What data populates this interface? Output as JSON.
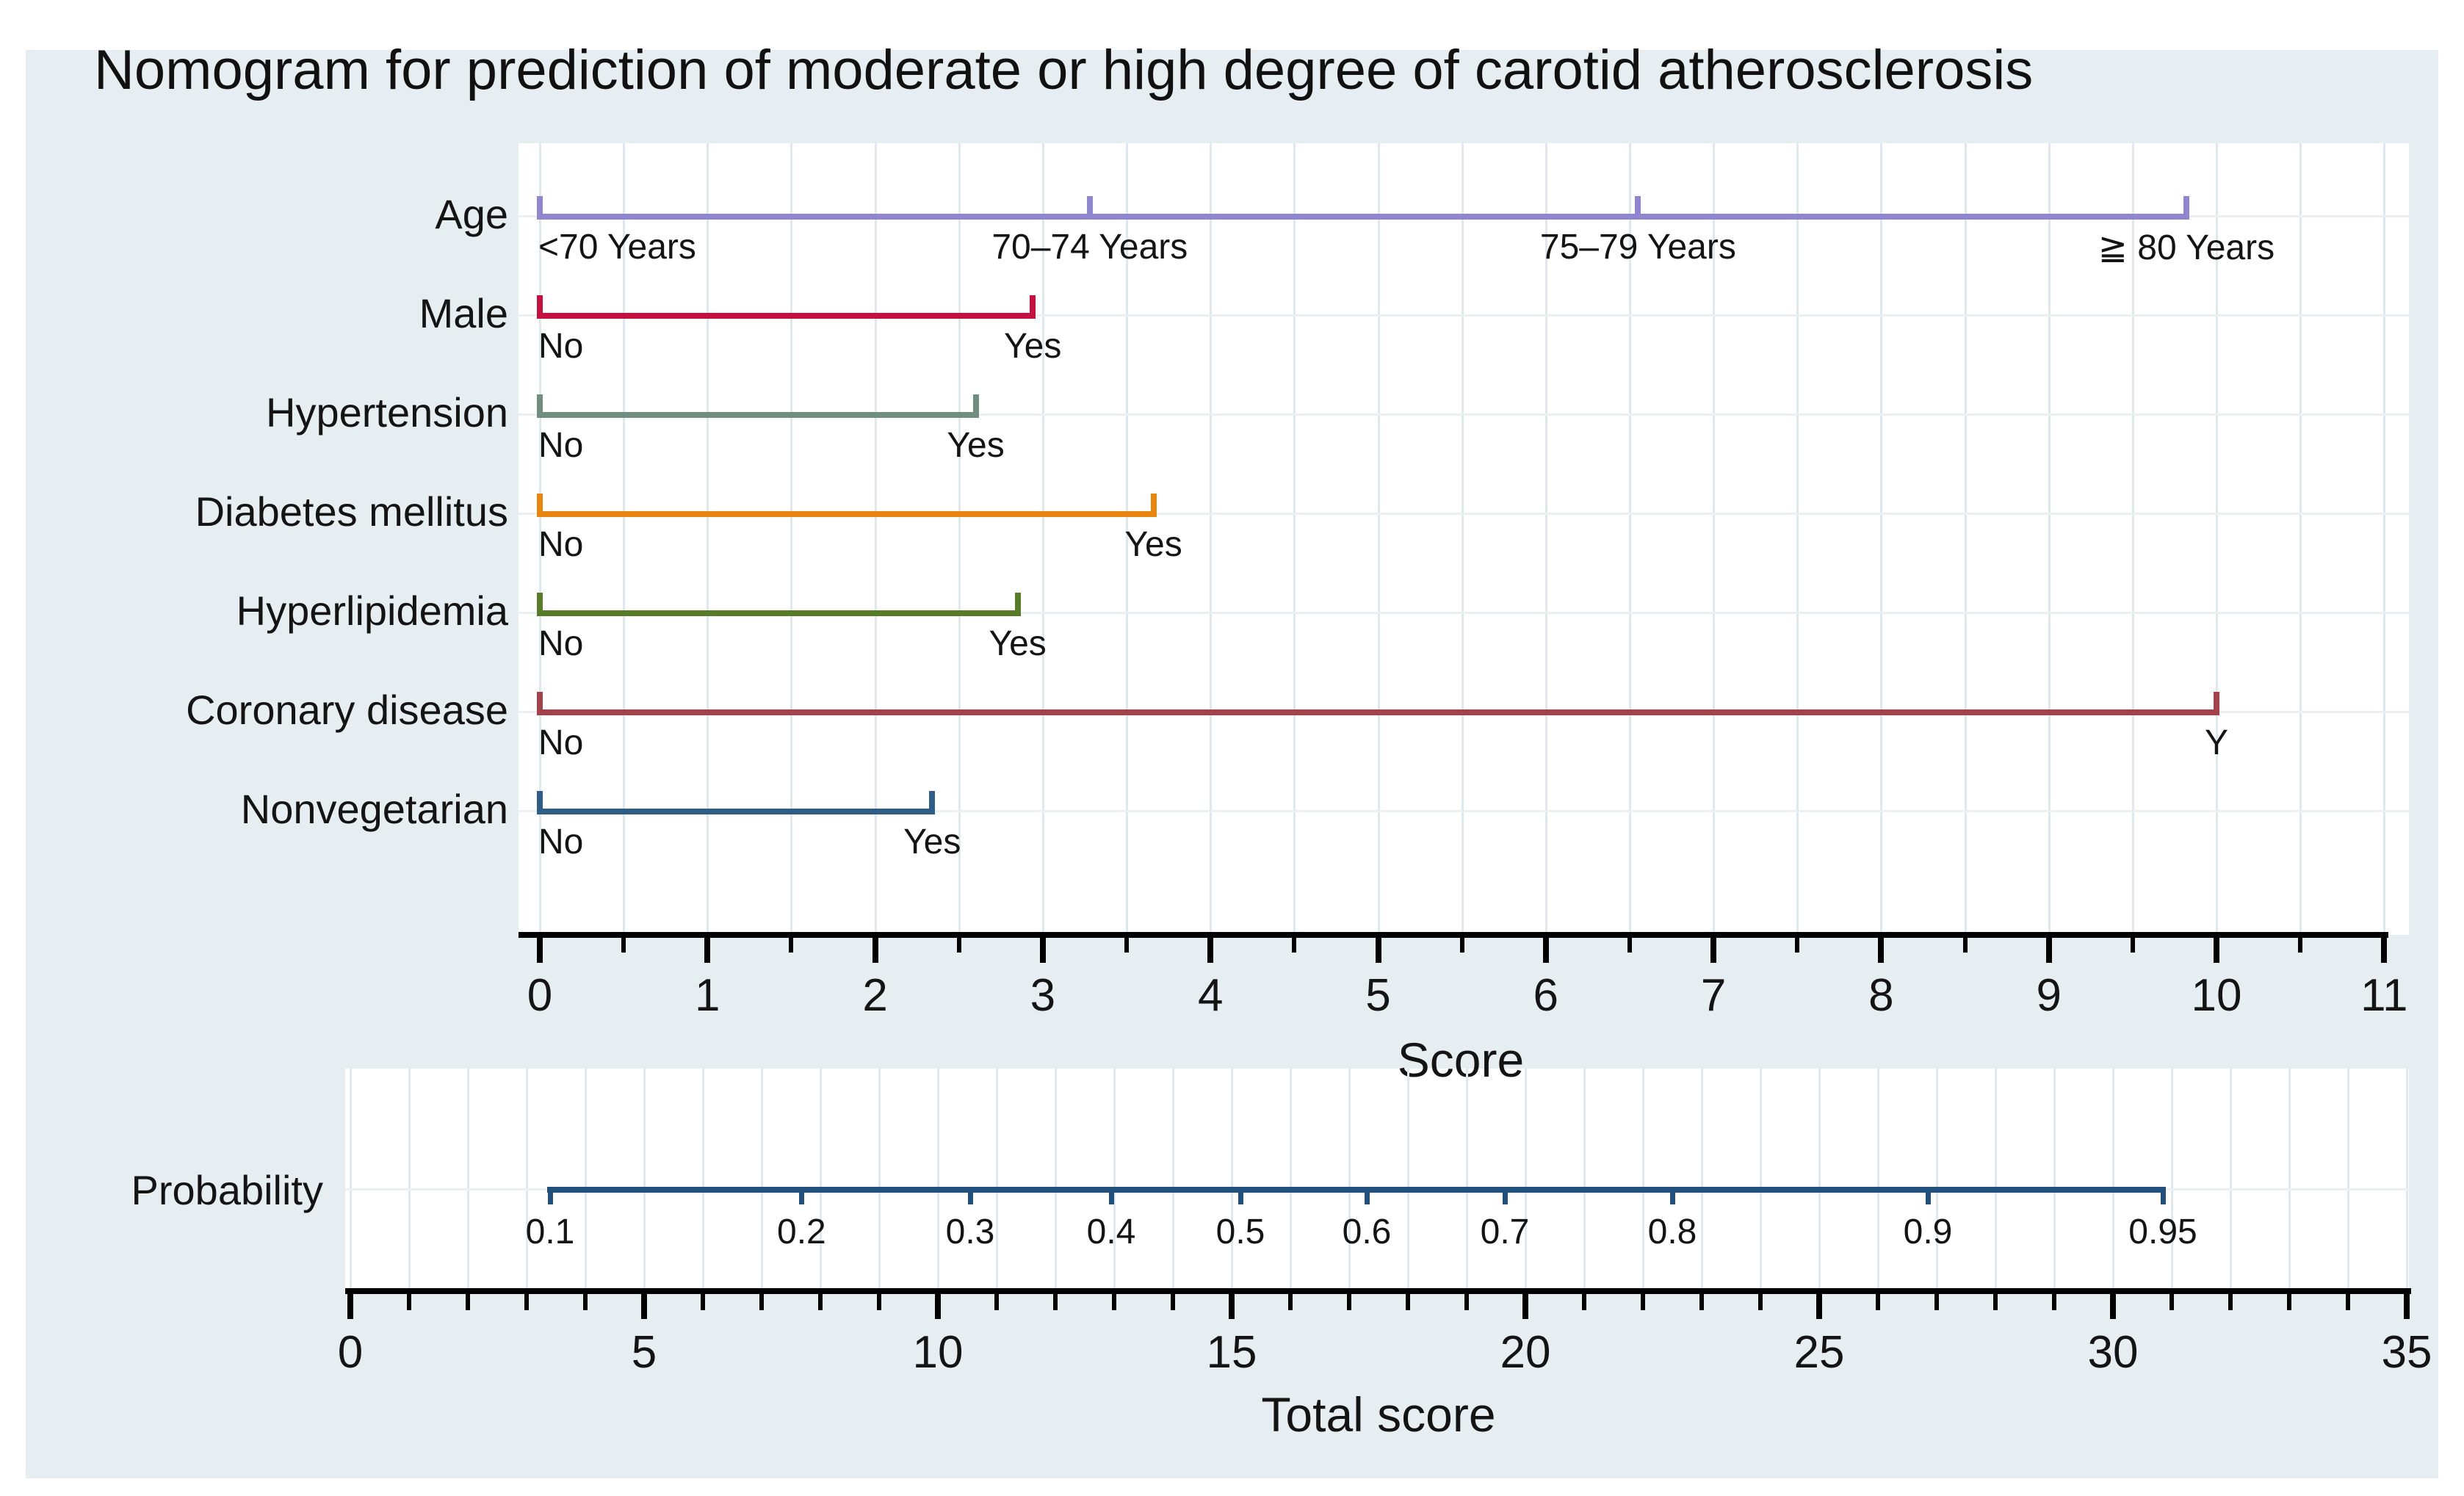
{
  "title": "Nomogram for prediction of moderate or high degree of carotid atherosclerosis",
  "colors": {
    "page_background": "#e7eef1",
    "plot_background": "#ffffff",
    "grid_vertical": "#dfe9ed",
    "grid_horizontal": "#ebf1f3",
    "axis": "#000000",
    "text": "#141414"
  },
  "chart_data": {
    "type": "nomogram",
    "title": "Nomogram for prediction of moderate or high degree of carotid atherosclerosis",
    "score_axis": {
      "label": "Score",
      "min": 0,
      "max": 11,
      "major_tick_step": 1,
      "minor_tick_step": 0.5,
      "tick_labels": [
        "0",
        "1",
        "2",
        "3",
        "4",
        "5",
        "6",
        "7",
        "8",
        "9",
        "10",
        "11"
      ]
    },
    "variables": [
      {
        "name": "Age",
        "color": "#8f86cf",
        "points": [
          {
            "label": "<70 Years",
            "score": 0
          },
          {
            "label": "70–74 Years",
            "score": 3.28
          },
          {
            "label": "75–79 Years",
            "score": 6.55
          },
          {
            "label": "≧ 80 Years",
            "score": 9.82
          }
        ]
      },
      {
        "name": "Male",
        "color": "#c41240",
        "points": [
          {
            "label": "No",
            "score": 0
          },
          {
            "label": "Yes",
            "score": 2.94
          }
        ]
      },
      {
        "name": "Hypertension",
        "color": "#6f8e80",
        "points": [
          {
            "label": "No",
            "score": 0
          },
          {
            "label": "Yes",
            "score": 2.6
          }
        ]
      },
      {
        "name": "Diabetes mellitus",
        "color": "#e8850e",
        "points": [
          {
            "label": "No",
            "score": 0
          },
          {
            "label": "Yes",
            "score": 3.66
          }
        ]
      },
      {
        "name": "Hyperlipidemia",
        "color": "#587b27",
        "points": [
          {
            "label": "No",
            "score": 0
          },
          {
            "label": "Yes",
            "score": 2.85
          }
        ]
      },
      {
        "name": "Coronary disease",
        "color": "#a2434c",
        "points": [
          {
            "label": "No",
            "score": 0
          },
          {
            "label": "Y",
            "score": 10.0
          }
        ]
      },
      {
        "name": "Nonvegetarian",
        "color": "#2e5e87",
        "points": [
          {
            "label": "No",
            "score": 0
          },
          {
            "label": "Yes",
            "score": 2.34
          }
        ]
      }
    ],
    "probability_scale": {
      "label": "Probability",
      "color": "#20507b",
      "points": [
        {
          "label": "0.1",
          "total_score": 3.4
        },
        {
          "label": "0.2",
          "total_score": 7.68
        },
        {
          "label": "0.3",
          "total_score": 10.55
        },
        {
          "label": "0.4",
          "total_score": 12.95
        },
        {
          "label": "0.5",
          "total_score": 15.15
        },
        {
          "label": "0.6",
          "total_score": 17.3
        },
        {
          "label": "0.7",
          "total_score": 19.65
        },
        {
          "label": "0.8",
          "total_score": 22.5
        },
        {
          "label": "0.9",
          "total_score": 26.85
        },
        {
          "label": "0.95",
          "total_score": 30.85
        }
      ]
    },
    "total_score_axis": {
      "label": "Total score",
      "min": 0,
      "max": 35,
      "major_tick_step": 5,
      "minor_tick_step": 1,
      "tick_labels": [
        "0",
        "5",
        "10",
        "15",
        "20",
        "25",
        "30",
        "35"
      ]
    },
    "grid": {
      "vertical_upper_step_score": 0.5,
      "vertical_lower_step_total": 1,
      "grid_on": true
    }
  }
}
